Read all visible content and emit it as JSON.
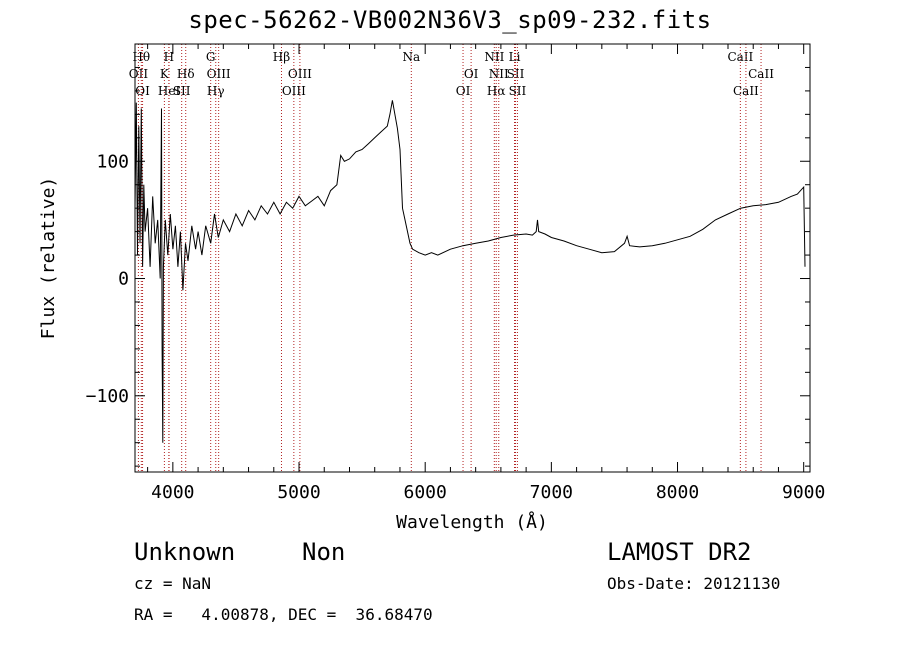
{
  "title": "spec-56262-VB002N36V3_sp09-232.fits",
  "info": {
    "class": "Unknown",
    "subclass": "Non",
    "survey": "LAMOST DR2",
    "cz": "cz = NaN",
    "obs_date": "Obs-Date: 20121130",
    "radec": "RA =   4.00878, DEC =  36.68470"
  },
  "colors": {
    "spectrum": "#000000",
    "lines": "#b22222",
    "axes": "#000000"
  },
  "chart_data": {
    "type": "line",
    "title": "spec-56262-VB002N36V3_sp09-232.fits",
    "xlabel": "Wavelength (Å)",
    "ylabel": "Flux (relative)",
    "xlim": [
      3700,
      9050
    ],
    "ylim": [
      -165,
      200
    ],
    "xticks": [
      4000,
      5000,
      6000,
      7000,
      8000,
      9000
    ],
    "yticks": [
      -100,
      0,
      100
    ],
    "spectrum": [
      [
        3700,
        60
      ],
      [
        3710,
        150
      ],
      [
        3720,
        20
      ],
      [
        3730,
        130
      ],
      [
        3740,
        30
      ],
      [
        3750,
        145
      ],
      [
        3760,
        10
      ],
      [
        3770,
        80
      ],
      [
        3780,
        40
      ],
      [
        3800,
        60
      ],
      [
        3820,
        10
      ],
      [
        3840,
        70
      ],
      [
        3860,
        30
      ],
      [
        3880,
        50
      ],
      [
        3900,
        0
      ],
      [
        3910,
        145
      ],
      [
        3915,
        -60
      ],
      [
        3920,
        -140
      ],
      [
        3925,
        10
      ],
      [
        3940,
        50
      ],
      [
        3960,
        20
      ],
      [
        3980,
        55
      ],
      [
        4000,
        25
      ],
      [
        4020,
        45
      ],
      [
        4040,
        10
      ],
      [
        4060,
        40
      ],
      [
        4080,
        -10
      ],
      [
        4100,
        30
      ],
      [
        4120,
        15
      ],
      [
        4150,
        45
      ],
      [
        4180,
        25
      ],
      [
        4200,
        40
      ],
      [
        4230,
        20
      ],
      [
        4260,
        45
      ],
      [
        4300,
        30
      ],
      [
        4330,
        55
      ],
      [
        4360,
        35
      ],
      [
        4400,
        50
      ],
      [
        4450,
        40
      ],
      [
        4500,
        55
      ],
      [
        4550,
        45
      ],
      [
        4600,
        58
      ],
      [
        4650,
        50
      ],
      [
        4700,
        62
      ],
      [
        4750,
        55
      ],
      [
        4800,
        65
      ],
      [
        4850,
        55
      ],
      [
        4900,
        65
      ],
      [
        4950,
        60
      ],
      [
        5000,
        70
      ],
      [
        5050,
        62
      ],
      [
        5100,
        66
      ],
      [
        5150,
        70
      ],
      [
        5200,
        62
      ],
      [
        5250,
        75
      ],
      [
        5300,
        80
      ],
      [
        5330,
        105
      ],
      [
        5360,
        100
      ],
      [
        5400,
        102
      ],
      [
        5450,
        108
      ],
      [
        5500,
        110
      ],
      [
        5550,
        115
      ],
      [
        5600,
        120
      ],
      [
        5650,
        125
      ],
      [
        5700,
        130
      ],
      [
        5720,
        140
      ],
      [
        5740,
        152
      ],
      [
        5760,
        140
      ],
      [
        5780,
        128
      ],
      [
        5800,
        110
      ],
      [
        5820,
        60
      ],
      [
        5840,
        50
      ],
      [
        5860,
        40
      ],
      [
        5880,
        30
      ],
      [
        5900,
        25
      ],
      [
        5950,
        22
      ],
      [
        6000,
        20
      ],
      [
        6050,
        22
      ],
      [
        6100,
        20
      ],
      [
        6200,
        25
      ],
      [
        6300,
        28
      ],
      [
        6400,
        30
      ],
      [
        6500,
        32
      ],
      [
        6600,
        35
      ],
      [
        6700,
        37
      ],
      [
        6800,
        38
      ],
      [
        6850,
        37
      ],
      [
        6880,
        40
      ],
      [
        6890,
        50
      ],
      [
        6895,
        45
      ],
      [
        6900,
        40
      ],
      [
        6950,
        38
      ],
      [
        7000,
        35
      ],
      [
        7100,
        32
      ],
      [
        7200,
        28
      ],
      [
        7300,
        25
      ],
      [
        7400,
        22
      ],
      [
        7500,
        23
      ],
      [
        7580,
        30
      ],
      [
        7600,
        36
      ],
      [
        7620,
        28
      ],
      [
        7700,
        27
      ],
      [
        7800,
        28
      ],
      [
        7900,
        30
      ],
      [
        8000,
        33
      ],
      [
        8100,
        36
      ],
      [
        8200,
        42
      ],
      [
        8300,
        50
      ],
      [
        8400,
        55
      ],
      [
        8500,
        60
      ],
      [
        8600,
        62
      ],
      [
        8700,
        63
      ],
      [
        8800,
        65
      ],
      [
        8900,
        70
      ],
      [
        8950,
        72
      ],
      [
        9000,
        78
      ],
      [
        9010,
        10
      ]
    ],
    "lines": [
      {
        "w": 3727,
        "row": 1,
        "label": "OII"
      },
      {
        "w": 3750,
        "row": 0,
        "label": "Hθ"
      },
      {
        "w": 3760,
        "row": 2,
        "label": "OI"
      },
      {
        "w": 3933,
        "row": 1,
        "label": "K"
      },
      {
        "w": 3968,
        "row": 0,
        "label": "H"
      },
      {
        "w": 3970,
        "row": 2,
        "label": "HeI"
      },
      {
        "w": 4070,
        "row": 2,
        "label": "SII"
      },
      {
        "w": 4102,
        "row": 1,
        "label": "Hδ"
      },
      {
        "w": 4300,
        "row": 0,
        "label": "G"
      },
      {
        "w": 4340,
        "row": 2,
        "label": "Hγ"
      },
      {
        "w": 4363,
        "row": 1,
        "label": "OIII"
      },
      {
        "w": 4861,
        "row": 0,
        "label": "Hβ"
      },
      {
        "w": 4959,
        "row": 2,
        "label": "OIII"
      },
      {
        "w": 5007,
        "row": 1,
        "label": "OIII"
      },
      {
        "w": 5890,
        "row": 0,
        "label": "Na"
      },
      {
        "w": 6300,
        "row": 2,
        "label": "OI"
      },
      {
        "w": 6364,
        "row": 1,
        "label": "OI"
      },
      {
        "w": 6548,
        "row": 0,
        "label": "NII"
      },
      {
        "w": 6563,
        "row": 2,
        "label": "Hα"
      },
      {
        "w": 6583,
        "row": 1,
        "label": "NII"
      },
      {
        "w": 6708,
        "row": 0,
        "label": "Li"
      },
      {
        "w": 6716,
        "row": 1,
        "label": "SII"
      },
      {
        "w": 6731,
        "row": 2,
        "label": "SII"
      },
      {
        "w": 8498,
        "row": 0,
        "label": "CaII"
      },
      {
        "w": 8542,
        "row": 2,
        "label": "CaII"
      },
      {
        "w": 8662,
        "row": 1,
        "label": "CaII"
      }
    ]
  }
}
